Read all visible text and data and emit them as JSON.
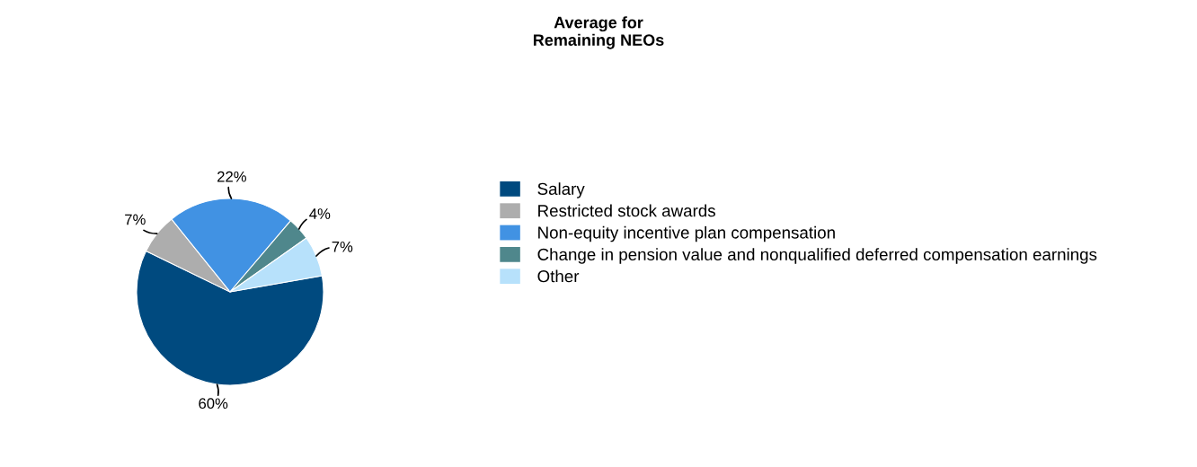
{
  "chart_data": {
    "type": "pie",
    "title": "Average for\nRemaining NEOs",
    "categories": [
      "Salary",
      "Restricted stock awards",
      "Non-equity incentive plan compensation",
      "Change in pension value and nonqualified deferred compensation earnings",
      "Other"
    ],
    "values": [
      60,
      7,
      22,
      4,
      7
    ],
    "value_labels": [
      "60%",
      "7%",
      "22%",
      "4%",
      "7%"
    ],
    "colors": [
      "#004a7f",
      "#adadad",
      "#4192e3",
      "#4f878c",
      "#b7e1fb"
    ],
    "legend": "right"
  }
}
